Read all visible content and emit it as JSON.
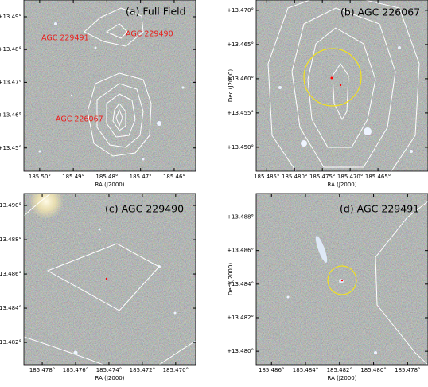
{
  "chart_data": [
    {
      "type": "image",
      "title": "(a) Full Field",
      "xlabel": "RA (J2000)",
      "xlim": [
        185.5047,
        185.4536
      ],
      "ylim": [
        13.4429,
        13.4951
      ],
      "xticks": [
        {
          "value": 185.5,
          "label": "185.50°"
        },
        {
          "value": 185.49,
          "label": "185.49°"
        },
        {
          "value": 185.48,
          "label": "185.48°"
        },
        {
          "value": 185.47,
          "label": "185.47°"
        },
        {
          "value": 185.46,
          "label": "185.46°"
        }
      ],
      "yticks": [
        {
          "value": 13.49,
          "label": "+13.49°"
        },
        {
          "value": 13.48,
          "label": "+13.48°"
        },
        {
          "value": 13.47,
          "label": "+13.47°"
        },
        {
          "value": 13.46,
          "label": "+13.46°"
        },
        {
          "value": 13.45,
          "label": "+13.45°"
        }
      ],
      "annotations": [
        "AGC 229491",
        "AGC 229490",
        "AGC 226067"
      ]
    },
    {
      "type": "image",
      "title": "(b) AGC 226067",
      "xlabel": "RA (J2000)",
      "ylabel": "Dec (J2000)",
      "xlim": [
        185.4869,
        185.456
      ],
      "ylim": [
        13.4465,
        13.4715
      ],
      "xticks": [
        {
          "value": 185.485,
          "label": "185.485°"
        },
        {
          "value": 185.48,
          "label": "185.480°"
        },
        {
          "value": 185.475,
          "label": "185.475°"
        },
        {
          "value": 185.47,
          "label": "185.470°"
        },
        {
          "value": 185.465,
          "label": "185.465°"
        }
      ],
      "yticks": [
        {
          "value": 13.47,
          "label": "+13.470°"
        },
        {
          "value": 13.465,
          "label": "+13.465°"
        },
        {
          "value": 13.46,
          "label": "+13.460°"
        },
        {
          "value": 13.455,
          "label": "+13.455°"
        },
        {
          "value": 13.45,
          "label": "+13.450°"
        }
      ]
    },
    {
      "type": "image",
      "title": "(c) AGC 229490",
      "xlabel": "RA (J2000)",
      "xlim": [
        185.4791,
        185.4688
      ],
      "ylim": [
        13.4807,
        13.4907
      ],
      "xticks": [
        {
          "value": 185.478,
          "label": "185.478°"
        },
        {
          "value": 185.476,
          "label": "185.476°"
        },
        {
          "value": 185.474,
          "label": "185.474°"
        },
        {
          "value": 185.472,
          "label": "185.472°"
        },
        {
          "value": 185.47,
          "label": "185.470°"
        }
      ],
      "yticks": [
        {
          "value": 13.49,
          "label": "13.490°"
        },
        {
          "value": 13.488,
          "label": "13.488°"
        },
        {
          "value": 13.486,
          "label": "13.486°"
        },
        {
          "value": 13.484,
          "label": "13.484°"
        },
        {
          "value": 13.482,
          "label": "13.482°"
        }
      ]
    },
    {
      "type": "image",
      "title": "(d) AGC 229491",
      "xlabel": "RA (J2000)",
      "ylabel": "Dec (J2000)",
      "xlim": [
        185.4869,
        185.4768
      ],
      "ylim": [
        13.4792,
        13.4894
      ],
      "xticks": [
        {
          "value": 185.486,
          "label": "185.486°"
        },
        {
          "value": 185.484,
          "label": "185.484°"
        },
        {
          "value": 185.482,
          "label": "185.482°"
        },
        {
          "value": 185.48,
          "label": "185.480°"
        },
        {
          "value": 185.478,
          "label": "185.478°"
        }
      ],
      "yticks": [
        {
          "value": 13.488,
          "label": "+13.488°"
        },
        {
          "value": 13.486,
          "label": "+13.486°"
        },
        {
          "value": 13.484,
          "label": "+13.484°"
        },
        {
          "value": 13.482,
          "label": "+13.482°"
        },
        {
          "value": 13.48,
          "label": "+13.480°"
        }
      ]
    }
  ]
}
